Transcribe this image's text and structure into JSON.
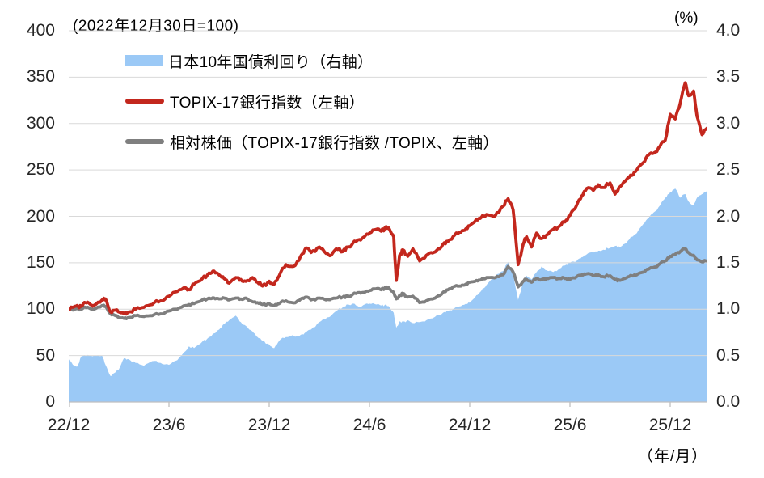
{
  "header": {
    "title": "(2022年12月30日=100)",
    "right_axis_unit": "(%)",
    "x_axis_unit": "（年/月）"
  },
  "legend": {
    "items": [
      {
        "label": "日本10年国債利回り（右軸）",
        "swatch": "area",
        "color": "#9BC9F6"
      },
      {
        "label": "TOPIX-17銀行指数（左軸）",
        "swatch": "line",
        "color": "#C3271D"
      },
      {
        "label": "相対株価（TOPIX-17銀行指数 /TOPIX、左軸）",
        "swatch": "line",
        "color": "#7F7F7F"
      }
    ]
  },
  "colors": {
    "area_blue": "#9BC9F6",
    "line_red": "#C3271D",
    "line_gray": "#7F7F7F",
    "gridline": "#D9D9D9",
    "axis_line": "#BFBFBF",
    "tick_text": "#262626"
  },
  "chart_data": {
    "type": "area",
    "note": "index (2022/12/30=100) for left-axis series; percent for right-axis area series; x in months after 2022/12",
    "left_axis": {
      "range": [
        0,
        400
      ],
      "tick_step": 50,
      "ticks": [
        "400",
        "350",
        "300",
        "250",
        "200",
        "150",
        "100",
        "50",
        "0"
      ]
    },
    "right_axis": {
      "range": [
        0.0,
        4.0
      ],
      "tick_step": 0.5,
      "ticks": [
        "4.0",
        "3.5",
        "3.0",
        "2.5",
        "2.0",
        "1.5",
        "1.0",
        "0.5",
        "0.0"
      ]
    },
    "x_axis": {
      "tick_labels": [
        "22/12",
        "23/6",
        "23/12",
        "24/6",
        "24/12",
        "25/6",
        "25/12"
      ],
      "tick_positions_months": [
        0,
        6,
        12,
        18,
        24,
        30,
        36
      ],
      "x_max_months": 38.2,
      "grid": false
    },
    "y_grid": true,
    "legend_position": "top-left",
    "t_months": [
      0,
      0.25,
      0.5,
      0.75,
      1,
      1.25,
      1.5,
      2,
      2.2,
      2.5,
      2.8,
      3,
      3.3,
      3.6,
      4,
      4.5,
      5,
      5.5,
      6,
      6.5,
      7,
      7.2,
      7.5,
      8,
      8.4,
      8.7,
      9,
      9.3,
      9.6,
      10,
      10.3,
      10.6,
      11,
      11.3,
      11.6,
      12,
      12.3,
      12.6,
      13,
      13.4,
      13.7,
      14,
      14.2,
      14.5,
      15,
      15.4,
      15.7,
      16,
      16.4,
      16.7,
      17,
      17.4,
      17.7,
      18,
      18.4,
      18.7,
      19,
      19.2,
      19.45,
      19.6,
      19.8,
      20,
      20.3,
      20.6,
      21,
      21.4,
      21.7,
      22,
      22.4,
      22.7,
      23,
      23.4,
      23.7,
      24,
      24.4,
      24.7,
      25,
      25.4,
      25.7,
      26,
      26.3,
      26.6,
      26.9,
      27.2,
      27.4,
      27.7,
      28,
      28.3,
      28.6,
      29,
      29.4,
      29.7,
      30,
      30.4,
      30.7,
      31,
      31.4,
      31.7,
      32,
      32.4,
      32.7,
      33,
      33.4,
      33.7,
      34,
      34.4,
      34.7,
      35,
      35.4,
      35.7,
      36,
      36.3,
      36.6,
      36.9,
      37.1,
      37.4,
      37.6,
      37.9,
      38.2
    ],
    "series": [
      {
        "name": "日本10年国債利回り（右軸）",
        "axis": "right",
        "style": "area",
        "color": "#9BC9F6",
        "unit": "%",
        "values": [
          0.46,
          0.4,
          0.38,
          0.49,
          0.5,
          0.5,
          0.5,
          0.5,
          0.4,
          0.28,
          0.32,
          0.35,
          0.47,
          0.46,
          0.42,
          0.39,
          0.44,
          0.42,
          0.4,
          0.45,
          0.55,
          0.6,
          0.58,
          0.65,
          0.7,
          0.74,
          0.78,
          0.84,
          0.88,
          0.93,
          0.86,
          0.82,
          0.76,
          0.7,
          0.66,
          0.62,
          0.58,
          0.66,
          0.7,
          0.72,
          0.71,
          0.73,
          0.75,
          0.78,
          0.86,
          0.9,
          0.93,
          0.98,
          1.02,
          1.05,
          1.06,
          1.02,
          1.05,
          1.06,
          1.05,
          1.04,
          1.05,
          1.02,
          0.96,
          0.8,
          0.87,
          0.86,
          0.88,
          0.85,
          0.86,
          0.88,
          0.9,
          0.93,
          0.96,
          0.98,
          1.0,
          1.03,
          1.05,
          1.07,
          1.15,
          1.2,
          1.26,
          1.34,
          1.38,
          1.41,
          1.51,
          1.36,
          1.1,
          1.3,
          1.36,
          1.32,
          1.4,
          1.46,
          1.42,
          1.4,
          1.44,
          1.47,
          1.5,
          1.52,
          1.56,
          1.59,
          1.61,
          1.63,
          1.64,
          1.66,
          1.68,
          1.67,
          1.72,
          1.78,
          1.82,
          1.92,
          1.98,
          2.04,
          2.12,
          2.2,
          2.26,
          2.3,
          2.2,
          2.24,
          2.16,
          2.12,
          2.2,
          2.24,
          2.27
        ]
      },
      {
        "name": "TOPIX-17銀行指数（左軸）",
        "axis": "left",
        "style": "line",
        "color": "#C3271D",
        "unit": "index",
        "values": [
          100,
          102,
          104,
          103,
          107,
          106,
          104,
          110,
          111,
          97,
          99,
          97,
          95,
          97,
          100,
          102,
          105,
          109,
          114,
          119,
          123,
          121,
          127,
          133,
          139,
          141,
          137,
          133,
          128,
          134,
          132,
          130,
          134,
          129,
          125,
          130,
          127,
          136,
          148,
          146,
          152,
          160,
          166,
          161,
          167,
          160,
          158,
          165,
          162,
          167,
          171,
          175,
          178,
          182,
          186,
          184,
          189,
          186,
          178,
          131,
          158,
          164,
          157,
          165,
          152,
          158,
          161,
          163,
          170,
          173,
          178,
          183,
          185,
          190,
          197,
          199,
          202,
          200,
          204,
          211,
          219,
          207,
          148,
          170,
          178,
          167,
          182,
          176,
          180,
          186,
          190,
          194,
          201,
          212,
          222,
          230,
          228,
          234,
          231,
          236,
          224,
          232,
          240,
          244,
          250,
          258,
          266,
          268,
          276,
          282,
          310,
          305,
          322,
          344,
          330,
          335,
          308,
          288,
          295
        ]
      },
      {
        "name": "相対株価（TOPIX-17銀行指数 /TOPIX、左軸）",
        "axis": "left",
        "style": "line",
        "color": "#7F7F7F",
        "unit": "index",
        "values": [
          100,
          99,
          101,
          100,
          102,
          101,
          100,
          104,
          103,
          95,
          93,
          91,
          90,
          91,
          93,
          92,
          93,
          95,
          98,
          100,
          104,
          105,
          106,
          110,
          112,
          112,
          111,
          112,
          110,
          112,
          111,
          112,
          108,
          107,
          105,
          106,
          104,
          106,
          109,
          107,
          109,
          112,
          113,
          110,
          112,
          110,
          111,
          112,
          113,
          114,
          116,
          118,
          118,
          120,
          122,
          121,
          124,
          122,
          118,
          111,
          115,
          117,
          113,
          114,
          107,
          109,
          111,
          113,
          118,
          121,
          124,
          125,
          126,
          129,
          131,
          132,
          134,
          134,
          135,
          137,
          146,
          140,
          124,
          130,
          132,
          129,
          133,
          132,
          133,
          134,
          133,
          133,
          132,
          135,
          137,
          138,
          136,
          137,
          135,
          136,
          132,
          131,
          134,
          136,
          137,
          140,
          143,
          145,
          149,
          152,
          157,
          159,
          162,
          165,
          161,
          158,
          153,
          151,
          152
        ]
      }
    ]
  }
}
